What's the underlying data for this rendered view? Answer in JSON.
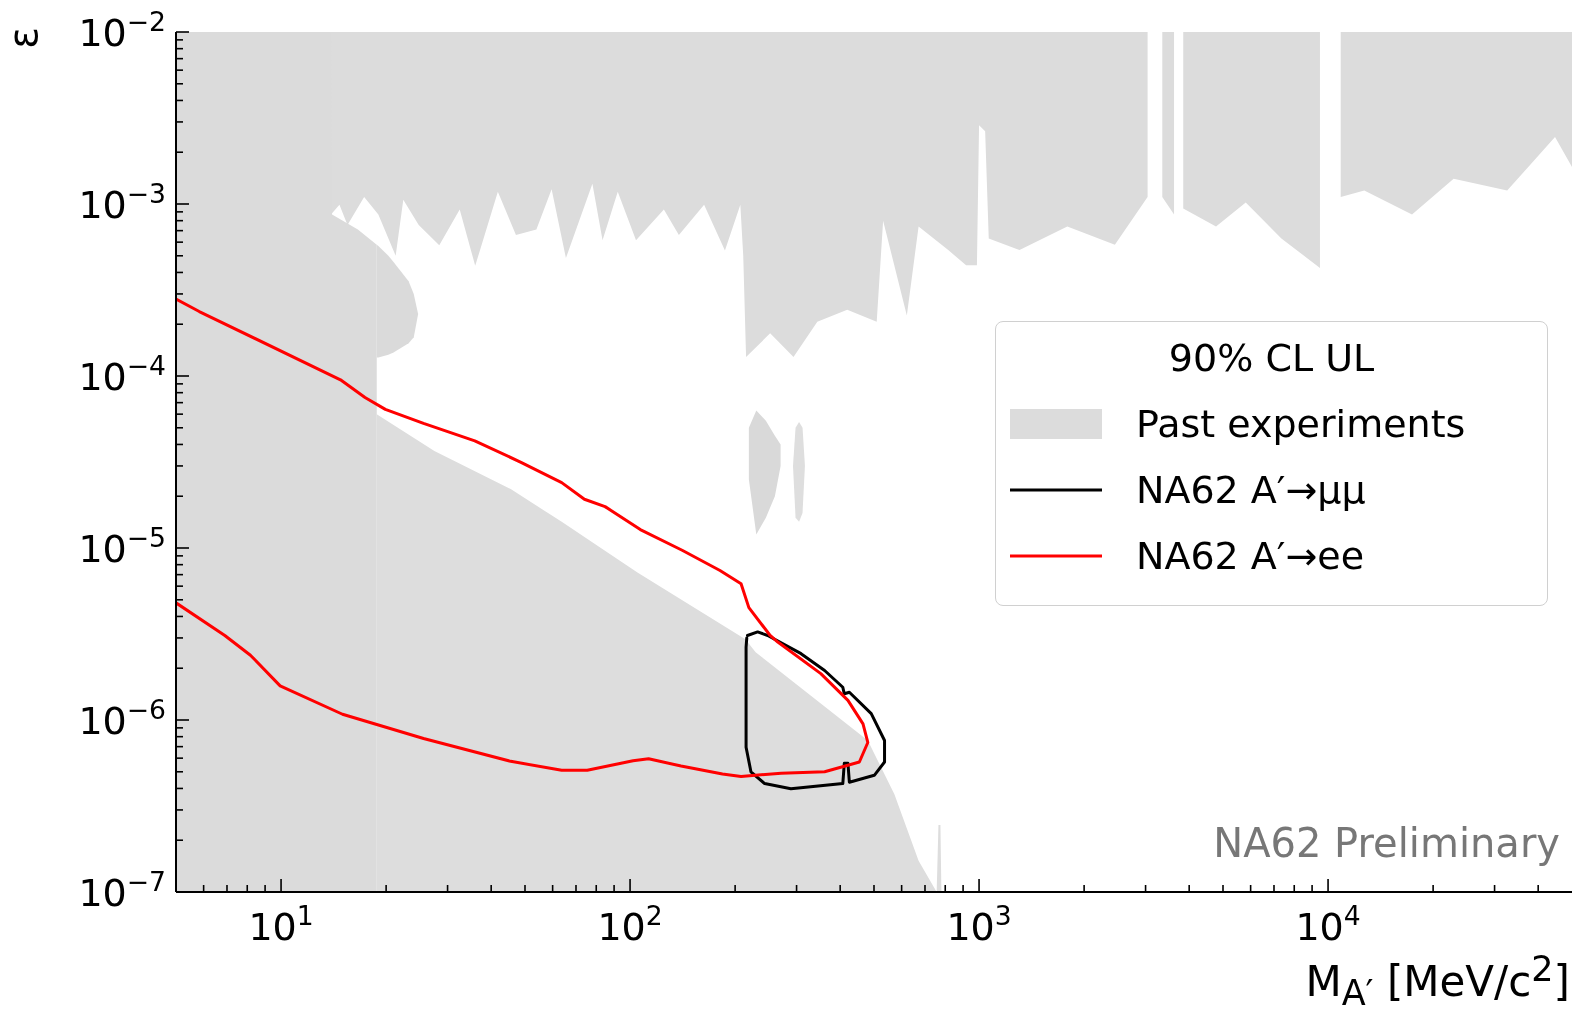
{
  "chart_data": {
    "type": "line",
    "xlabel": "M$_{A′}$ [MeV/c$^{2}$]",
    "ylabel": "ε",
    "legend_title": "90% CL UL",
    "legend": "right",
    "log": "xy",
    "xlim": [
      5,
      50000
    ],
    "ylim": [
      1e-07,
      0.01
    ],
    "xticks": [
      {
        "value": 6,
        "label": null
      },
      {
        "value": 7,
        "label": null
      },
      {
        "value": 8,
        "label": null
      },
      {
        "value": 9,
        "label": null
      },
      {
        "value": 10,
        "label": "10$^{1}$"
      },
      {
        "value": 20,
        "label": null
      },
      {
        "value": 30,
        "label": null
      },
      {
        "value": 40,
        "label": null
      },
      {
        "value": 50,
        "label": null
      },
      {
        "value": 60,
        "label": null
      },
      {
        "value": 70,
        "label": null
      },
      {
        "value": 80,
        "label": null
      },
      {
        "value": 90,
        "label": null
      },
      {
        "value": 100,
        "label": "10$^{2}$"
      },
      {
        "value": 200,
        "label": null
      },
      {
        "value": 300,
        "label": null
      },
      {
        "value": 400,
        "label": null
      },
      {
        "value": 500,
        "label": null
      },
      {
        "value": 600,
        "label": null
      },
      {
        "value": 700,
        "label": null
      },
      {
        "value": 800,
        "label": null
      },
      {
        "value": 900,
        "label": null
      },
      {
        "value": 1000,
        "label": "10$^{3}$"
      },
      {
        "value": 2000,
        "label": null
      },
      {
        "value": 3000,
        "label": null
      },
      {
        "value": 4000,
        "label": null
      },
      {
        "value": 5000,
        "label": null
      },
      {
        "value": 6000,
        "label": null
      },
      {
        "value": 7000,
        "label": null
      },
      {
        "value": 8000,
        "label": null
      },
      {
        "value": 9000,
        "label": null
      },
      {
        "value": 10000,
        "label": "10$^{4}$"
      },
      {
        "value": 20000,
        "label": null
      },
      {
        "value": 30000,
        "label": null
      },
      {
        "value": 40000,
        "label": null
      }
    ],
    "yticks": [
      {
        "value": 1e-07,
        "label": "10$^{−7}$"
      },
      {
        "value": 2e-07,
        "label": null
      },
      {
        "value": 3e-07,
        "label": null
      },
      {
        "value": 4e-07,
        "label": null
      },
      {
        "value": 5e-07,
        "label": null
      },
      {
        "value": 6e-07,
        "label": null
      },
      {
        "value": 7e-07,
        "label": null
      },
      {
        "value": 8e-07,
        "label": null
      },
      {
        "value": 9e-07,
        "label": null
      },
      {
        "value": 1e-06,
        "label": "10$^{−6}$"
      },
      {
        "value": 2e-06,
        "label": null
      },
      {
        "value": 3e-06,
        "label": null
      },
      {
        "value": 4e-06,
        "label": null
      },
      {
        "value": 5e-06,
        "label": null
      },
      {
        "value": 6e-06,
        "label": null
      },
      {
        "value": 7e-06,
        "label": null
      },
      {
        "value": 8e-06,
        "label": null
      },
      {
        "value": 9e-06,
        "label": null
      },
      {
        "value": 1e-05,
        "label": "10$^{−5}$"
      },
      {
        "value": 2e-05,
        "label": null
      },
      {
        "value": 3e-05,
        "label": null
      },
      {
        "value": 4e-05,
        "label": null
      },
      {
        "value": 5e-05,
        "label": null
      },
      {
        "value": 6e-05,
        "label": null
      },
      {
        "value": 7e-05,
        "label": null
      },
      {
        "value": 8e-05,
        "label": null
      },
      {
        "value": 9e-05,
        "label": null
      },
      {
        "value": 0.0001,
        "label": "10$^{−4}$"
      },
      {
        "value": 0.0002,
        "label": null
      },
      {
        "value": 0.0003,
        "label": null
      },
      {
        "value": 0.0004,
        "label": null
      },
      {
        "value": 0.0005,
        "label": null
      },
      {
        "value": 0.0006,
        "label": null
      },
      {
        "value": 0.0007,
        "label": null
      },
      {
        "value": 0.0008,
        "label": null
      },
      {
        "value": 0.0009,
        "label": null
      },
      {
        "value": 0.001,
        "label": "10$^{−3}$"
      },
      {
        "value": 0.002,
        "label": null
      },
      {
        "value": 0.003,
        "label": null
      },
      {
        "value": 0.004,
        "label": null
      },
      {
        "value": 0.005,
        "label": null
      },
      {
        "value": 0.006,
        "label": null
      },
      {
        "value": 0.007,
        "label": null
      },
      {
        "value": 0.008,
        "label": null
      },
      {
        "value": 0.009,
        "label": null
      },
      {
        "value": 0.01,
        "label": "10$^{−2}$"
      }
    ],
    "annotations": [
      "NA62 Preliminary"
    ],
    "series": [
      {
        "type": "line",
        "name": "Past experiments",
        "color": "#dcdcdc",
        "x": [
          13.9,
          14.7,
          15.5,
          17.3,
          19.0,
          21.3,
          22.4,
          24.8,
          28.4,
          32.5,
          36.0,
          41.8,
          47.1,
          53.9,
          59.6,
          65.5,
          78.0,
          83.4,
          92.2,
          104,
          125,
          138,
          163,
          187,
          207,
          211,
          215,
          252,
          294,
          344,
          419,
          509,
          531,
          621,
          671,
          816,
          918,
          986,
          1000,
          1041,
          1066,
          1306,
          1790,
          2450,
          3040,
          3162,
          3350,
          3620,
          3698,
          3846,
          4775,
          5810,
          7350,
          9480,
          10040,
          10870,
          12700,
          17400,
          22900,
          32600,
          44700,
          50000
        ],
        "upper": [
          0.01,
          0.01,
          0.01,
          0.01,
          0.01,
          0.01,
          0.01,
          0.01,
          0.01,
          0.01,
          0.01,
          0.01,
          0.01,
          0.01,
          0.01,
          0.01,
          0.01,
          0.01,
          0.01,
          0.01,
          0.01,
          0.01,
          0.01,
          0.01,
          0.01,
          0.01,
          0.01,
          0.01,
          0.01,
          0.01,
          0.01,
          0.01,
          0.01,
          0.01,
          0.01,
          0.01,
          0.01,
          0.01,
          0.01,
          0.01,
          0.01,
          0.01,
          0.01,
          0.01,
          0.01,
          null,
          0.01,
          0.01,
          null,
          0.01,
          0.01,
          0.01,
          0.01,
          0.01,
          null,
          0.01,
          0.01,
          0.01,
          0.01,
          0.01,
          0.01,
          0.01
        ],
        "lower": [
          0.00087,
          0.00099,
          0.000755,
          0.0011,
          0.00087,
          0.0005,
          0.00106,
          0.000755,
          0.000575,
          0.00093,
          0.000437,
          0.00118,
          0.00066,
          0.00071,
          0.00122,
          0.000485,
          0.00131,
          0.000615,
          0.00118,
          0.000615,
          0.00093,
          0.00066,
          0.00099,
          0.000537,
          0.00099,
          0.0005,
          0.000129,
          0.000177,
          0.000129,
          0.000207,
          0.000243,
          0.000207,
          0.0008,
          0.000225,
          0.00074,
          0.00054,
          0.00044,
          0.00044,
          0.00287,
          0.00265,
          0.00063,
          0.00054,
          0.00074,
          0.00058,
          0.0011,
          null,
          0.0011,
          0.00087,
          null,
          0.00094,
          0.00074,
          0.00102,
          0.00063,
          0.000425,
          null,
          0.0011,
          0.0012,
          0.00087,
          0.0014,
          0.0012,
          0.00245,
          0.00164
        ],
        "values": [
          null,
          null,
          null,
          null,
          null,
          null,
          null,
          null,
          null,
          null,
          null,
          null,
          null,
          null,
          null,
          null,
          null,
          null,
          null,
          null,
          null,
          null,
          null,
          null,
          null,
          null,
          null,
          null,
          null,
          null,
          null,
          null,
          null,
          null,
          null,
          null,
          null,
          null,
          null,
          null,
          null,
          null,
          null,
          null,
          null,
          null,
          null,
          null,
          null,
          null,
          null,
          null,
          null,
          null,
          null,
          null,
          null,
          null,
          null,
          null,
          null,
          null
        ]
      },
      {
        "type": "line",
        "color": "#dbdbdb",
        "x": [
          5,
          13.9,
          14.0,
          16.6,
          18.8
        ],
        "upper": [
          0.01,
          0.01,
          0.00087,
          0.00071,
          0.00058
        ],
        "lower": [
          1e-07,
          1e-07,
          1e-07,
          1e-07,
          1e-07
        ],
        "values": [
          null,
          null,
          null,
          null,
          null
        ]
      },
      {
        "type": "line",
        "color": "#dadada",
        "x": [
          18.8,
          19.0,
          20.3,
          21.0,
          23.2,
          24.0,
          24.7
        ],
        "upper": [
          0.00058,
          0.00057,
          0.0005,
          0.00046,
          0.000356,
          0.0003,
          0.000229
        ],
        "lower": [
          0.000128,
          0.000128,
          0.000133,
          0.000137,
          0.000155,
          0.000168,
          0.000229
        ],
        "values": [
          null,
          null,
          null,
          null,
          null,
          null,
          null
        ]
      },
      {
        "type": "line",
        "color": "#dddddd",
        "x": [
          18.8,
          27.5,
          45.5,
          63.7,
          105,
          214,
          229,
          480,
          572,
          671,
          756,
          765,
          775,
          780
        ],
        "upper": [
          6e-05,
          3.67e-05,
          2.2e-05,
          1.42e-05,
          7.2e-06,
          2.95e-06,
          2.48e-06,
          7.6e-07,
          3.7e-07,
          1.52e-07,
          1e-07,
          2.45e-07,
          2.45e-07,
          1e-07
        ],
        "lower": [
          1e-07,
          1e-07,
          1e-07,
          1e-07,
          1e-07,
          1e-07,
          1e-07,
          1e-07,
          1e-07,
          1e-07,
          1e-07,
          1e-07,
          1e-07,
          1e-07
        ],
        "values": [
          null,
          null,
          null,
          null,
          null,
          null,
          null,
          null,
          null,
          null,
          null,
          null,
          null,
          null
        ]
      },
      {
        "type": "line",
        "color": "#d9d9d9",
        "x": [
          219,
          230,
          245,
          260,
          270
        ],
        "upper": [
          5e-05,
          6.3e-05,
          5.5e-05,
          4.5e-05,
          4e-05
        ],
        "lower": [
          2.5e-05,
          1.2e-05,
          1.5e-05,
          2e-05,
          3e-05
        ],
        "values": [
          null,
          null,
          null,
          null,
          null
        ]
      },
      {
        "type": "line",
        "color": "#dedede",
        "x": [
          293,
          298,
          305,
          312,
          317
        ],
        "upper": [
          3e-05,
          5e-05,
          5.4e-05,
          5e-05,
          3e-05
        ],
        "lower": [
          3e-05,
          1.5e-05,
          1.42e-05,
          1.6e-05,
          3e-05
        ],
        "values": [
          null,
          null,
          null,
          null,
          null
        ]
      },
      {
        "name": "NA62 A′→μμ",
        "color": "#000000",
        "x": [
          217,
          232,
          248,
          309,
          361,
          407,
          411,
          425,
          491,
          536,
          536,
          501,
          425,
          421,
          411,
          407,
          289,
          243,
          222,
          215,
          215,
          216
        ],
        "values": [
          3.1e-06,
          3.25e-06,
          3.1e-06,
          2.43e-06,
          1.94e-06,
          1.55e-06,
          1.42e-06,
          1.45e-06,
          1.09e-06,
          7.6e-07,
          5.7e-07,
          4.77e-07,
          4.35e-07,
          5.6e-07,
          5.6e-07,
          4.27e-07,
          3.98e-07,
          4.27e-07,
          5e-07,
          6.95e-07,
          2.65e-06,
          3e-06
        ]
      },
      {
        "name": "NA62 A′→ee",
        "color": "#ff0000",
        "x": [
          5,
          5.83,
          14.8,
          17.4,
          19.9,
          25.6,
          35.9,
          48.7,
          63.7,
          74,
          84.8,
          107,
          141,
          181,
          208,
          219,
          252,
          265,
          352,
          421,
          465,
          480,
          454,
          361,
          271,
          208,
          184,
          140,
          113,
          102,
          75.4,
          63.7,
          45.5,
          25.6,
          15.0,
          9.94,
          8.17,
          6.9,
          5.0
        ],
        "values": [
          0.00028,
          0.000237,
          9.5e-05,
          7.5e-05,
          6.4e-05,
          5.3e-05,
          4.2e-05,
          3.15e-05,
          2.4e-05,
          1.92e-05,
          1.74e-05,
          1.28e-05,
          9.7e-06,
          7.4e-06,
          6.2e-06,
          4.5e-06,
          3.1e-06,
          2.84e-06,
          1.86e-06,
          1.3e-06,
          9.5e-07,
          7.4e-07,
          5.7e-07,
          5e-07,
          4.9e-07,
          4.7e-07,
          4.85e-07,
          5.4e-07,
          5.95e-07,
          5.8e-07,
          5.1e-07,
          5.1e-07,
          5.75e-07,
          7.8e-07,
          1.08e-06,
          1.58e-06,
          2.38e-06,
          3.1e-06,
          4.8e-06
        ]
      }
    ]
  }
}
